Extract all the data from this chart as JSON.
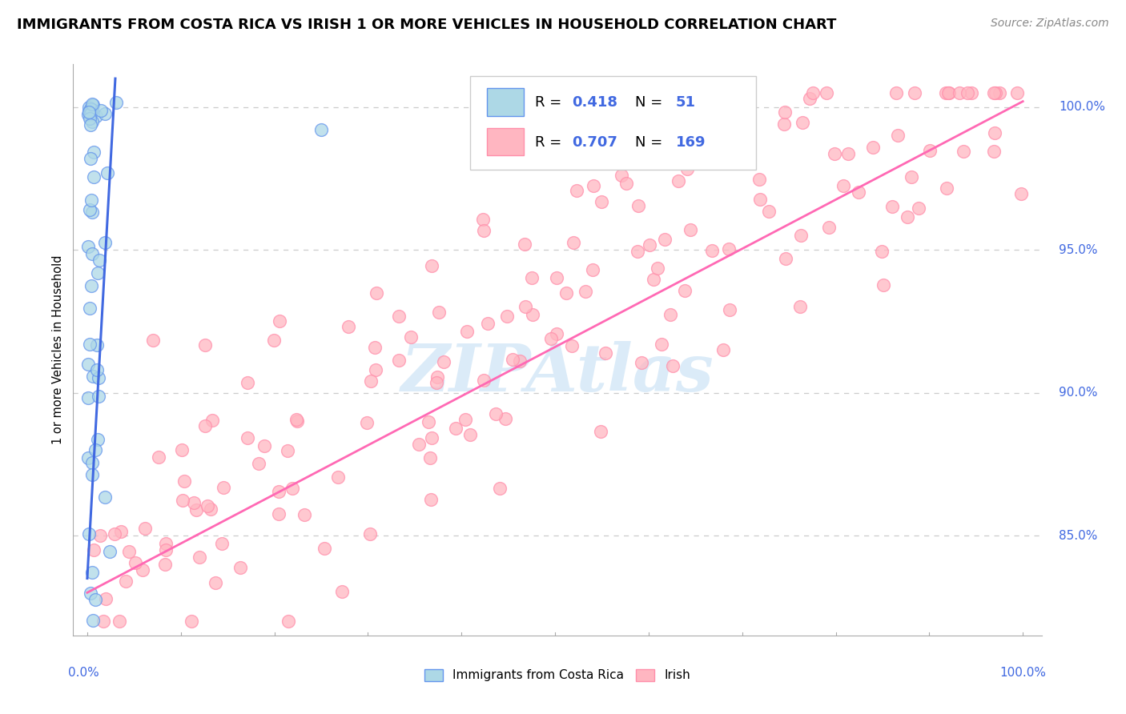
{
  "title": "IMMIGRANTS FROM COSTA RICA VS IRISH 1 OR MORE VEHICLES IN HOUSEHOLD CORRELATION CHART",
  "source": "Source: ZipAtlas.com",
  "ylabel": "1 or more Vehicles in Household",
  "y_tick_values": [
    85.0,
    90.0,
    95.0,
    100.0
  ],
  "y_tick_labels": [
    "85.0%",
    "90.0%",
    "95.0%",
    "100.0%"
  ],
  "x_min": 0.0,
  "x_max": 100.0,
  "y_min": 81.5,
  "y_max": 101.5,
  "legend_r1": "0.418",
  "legend_n1": "51",
  "legend_r2": "0.707",
  "legend_n2": "169",
  "color_blue_fill": "#ADD8E6",
  "color_blue_edge": "#6495ED",
  "color_blue_line": "#4169E1",
  "color_pink_fill": "#FFB6C1",
  "color_pink_edge": "#FF8FAB",
  "color_pink_line": "#FF69B4",
  "color_grid": "#CCCCCC",
  "color_axis_label": "#4169E1",
  "color_text": "#000000",
  "color_source": "#888888",
  "watermark_text": "ZIPAtlas",
  "watermark_color": "#B0D4F1",
  "blue_line_x": [
    0.0,
    3.0
  ],
  "blue_line_y": [
    83.5,
    101.0
  ],
  "pink_line_x": [
    0.0,
    100.0
  ],
  "pink_line_y": [
    83.0,
    100.2
  ]
}
